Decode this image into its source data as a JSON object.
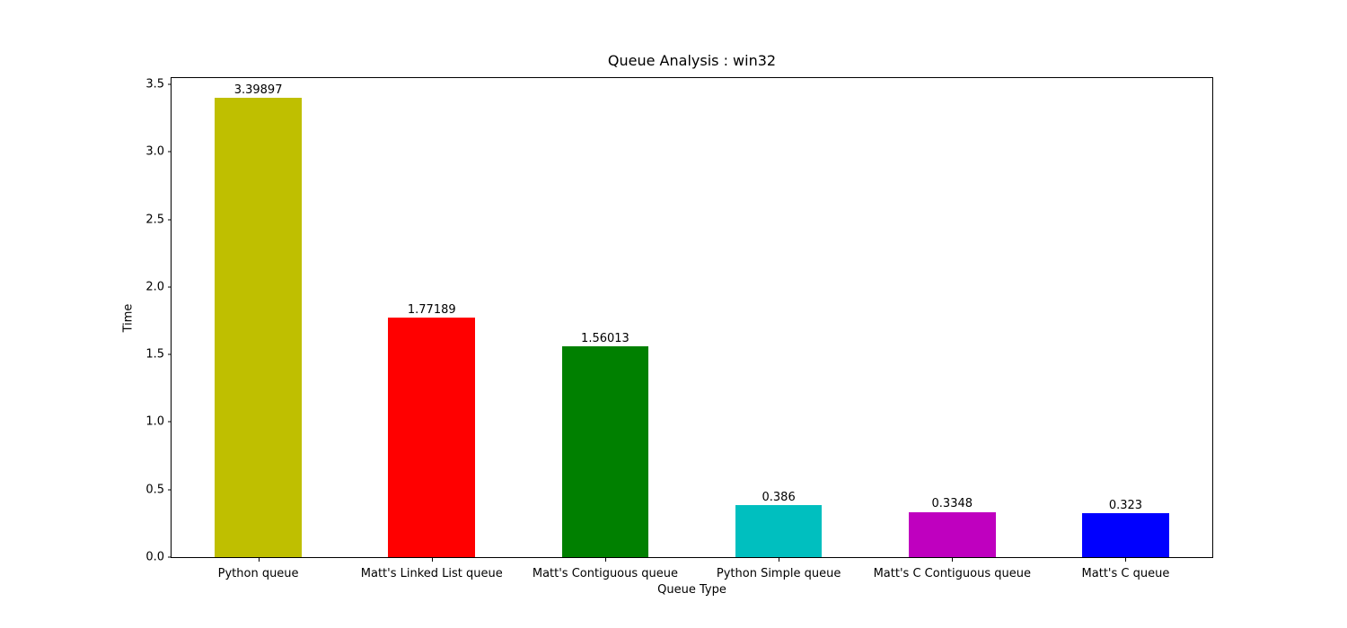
{
  "figure": {
    "background": "#ffffff",
    "text_color": "#000000",
    "axis_color": "#000000"
  },
  "chart_data": {
    "type": "bar",
    "title": "Queue Analysis : win32",
    "xlabel": "Queue Type",
    "ylabel": "Time",
    "categories": [
      "Python queue",
      "Matt's Linked List queue",
      "Matt's Contiguous queue",
      "Python Simple queue",
      "Matt's C Contiguous queue",
      "Matt's C queue"
    ],
    "values": [
      3.39897,
      1.77189,
      1.56013,
      0.386,
      0.3348,
      0.323
    ],
    "value_labels": [
      "3.39897",
      "1.77189",
      "1.56013",
      "0.386",
      "0.3348",
      "0.323"
    ],
    "bar_colors": [
      "#bfbf00",
      "#ff0000",
      "#008000",
      "#00bfbf",
      "#bf00bf",
      "#0000ff"
    ],
    "bar_width_ratio": 0.5,
    "yticks": [
      0,
      0.5,
      1,
      1.5,
      2,
      2.5,
      3,
      3.5
    ],
    "ytick_labels": [
      "0.0",
      "0.5",
      "1.0",
      "1.5",
      "2.0",
      "2.5",
      "3.0",
      "3.5"
    ],
    "ylim": [
      0,
      3.546
    ],
    "grid": false,
    "legend_position": "none"
  }
}
